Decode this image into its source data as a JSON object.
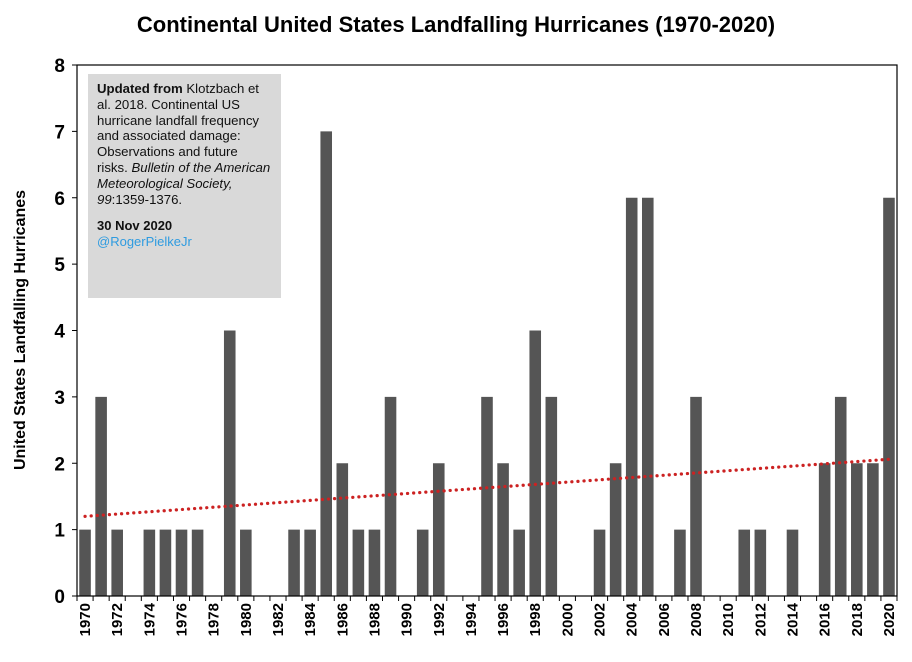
{
  "chart_data": {
    "type": "bar",
    "title": "Continental United States Landfalling Hurricanes (1970-2020)",
    "ylabel": "United States Landfalling Hurricanes",
    "xlabel": "",
    "ylim": [
      0,
      8
    ],
    "yticks": [
      "0",
      "1",
      "2",
      "3",
      "4",
      "5",
      "6",
      "7",
      "8"
    ],
    "categories": [
      "1970",
      "1971",
      "1972",
      "1973",
      "1974",
      "1975",
      "1976",
      "1977",
      "1978",
      "1979",
      "1980",
      "1981",
      "1982",
      "1983",
      "1984",
      "1985",
      "1986",
      "1987",
      "1988",
      "1989",
      "1990",
      "1991",
      "1992",
      "1993",
      "1994",
      "1995",
      "1996",
      "1997",
      "1998",
      "1999",
      "2000",
      "2001",
      "2002",
      "2003",
      "2004",
      "2005",
      "2006",
      "2007",
      "2008",
      "2009",
      "2010",
      "2011",
      "2012",
      "2013",
      "2014",
      "2015",
      "2016",
      "2017",
      "2018",
      "2019",
      "2020"
    ],
    "xtick_labels": [
      "1970",
      "1972",
      "1974",
      "1976",
      "1978",
      "1980",
      "1982",
      "1984",
      "1986",
      "1988",
      "1990",
      "1992",
      "1994",
      "1996",
      "1998",
      "2000",
      "2002",
      "2004",
      "2006",
      "2008",
      "2010",
      "2012",
      "2014",
      "2016",
      "2018",
      "2020"
    ],
    "values": [
      1,
      3,
      1,
      0,
      1,
      1,
      1,
      1,
      0,
      4,
      1,
      0,
      0,
      1,
      1,
      7,
      2,
      1,
      1,
      3,
      0,
      1,
      2,
      0,
      0,
      3,
      2,
      1,
      4,
      3,
      0,
      0,
      1,
      2,
      6,
      6,
      0,
      1,
      3,
      0,
      0,
      1,
      1,
      0,
      1,
      0,
      2,
      3,
      2,
      2,
      6
    ],
    "trendline": {
      "style": "dotted",
      "start": 1.2,
      "end": 2.06
    },
    "grid": false,
    "colors": {
      "bar": "#555555",
      "trend": "#cc2222"
    }
  },
  "note": {
    "source_bold": "Updated from",
    "source_text": " Klotzbach et al. 2018. Continental US hurricane landfall frequency and associated damage: Observations and future risks. ",
    "journal_italic": "Bulletin of the American Meteorological Society, 99",
    "pages": ":1359-1376.",
    "date": "30 Nov 2020",
    "handle": "@RogerPielkeJr"
  }
}
